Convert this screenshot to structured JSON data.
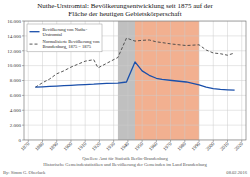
{
  "chart_data": {
    "type": "line",
    "title": "Nuthe-Urstromtal: Bevölkerungsentwicklung seit 1875 auf der\nFläche der heutigen Gebietskörperschaft",
    "x": [
      1875,
      1880,
      1885,
      1890,
      1895,
      1900,
      1905,
      1910,
      1916,
      1919,
      1925,
      1933,
      1939,
      1945,
      1950,
      1955,
      1960,
      1964,
      1971,
      1981,
      1990,
      1995,
      2000,
      2005,
      2010,
      2015
    ],
    "series": [
      {
        "name": "Bevölkerung von Nuthe-\nUrstromtal",
        "color": "#1a4faa",
        "line_style": "solid",
        "values": [
          7100,
          7150,
          7200,
          7250,
          7300,
          7350,
          7400,
          7450,
          7500,
          7550,
          7600,
          7650,
          7800,
          10500,
          9300,
          8700,
          8300,
          8150,
          8000,
          7800,
          7400,
          7100,
          6900,
          6800,
          6750,
          6700
        ]
      },
      {
        "name": "Normalisierte Bevölkerung von\nBrandenburg, 1875 = 1875",
        "color": "#444444",
        "line_style": "dashed",
        "values": [
          7100,
          7700,
          8200,
          8900,
          9300,
          9800,
          10200,
          10600,
          10800,
          9700,
          10300,
          11100,
          13700,
          13300,
          13400,
          13450,
          13200,
          13100,
          12900,
          12700,
          12800,
          12100,
          11700,
          11600,
          11400,
          11700
        ]
      }
    ],
    "spans": [
      {
        "start": 1933,
        "end": 1945,
        "color": "#c0c0c0"
      },
      {
        "start": 1945,
        "end": 1990,
        "color": "#f2b090"
      }
    ],
    "xlim": [
      1867,
      2023
    ],
    "xticks": [
      1870,
      1880,
      1890,
      1900,
      1910,
      1920,
      1930,
      1940,
      1950,
      1960,
      1970,
      1980,
      1990,
      2000,
      2010,
      2020
    ],
    "ylim": [
      0,
      16000
    ],
    "yticks": [
      0,
      {
        "value": 2000,
        "label": "2.000"
      },
      {
        "value": 4000,
        "label": "4.000"
      },
      {
        "value": 6000,
        "label": "6.000"
      },
      {
        "value": 8000,
        "label": "8.000"
      },
      {
        "value": 10000,
        "label": "10.000"
      },
      {
        "value": 12000,
        "label": "12.000"
      },
      {
        "value": 14000,
        "label": "14.000"
      },
      {
        "value": 16000,
        "label": "16.000"
      }
    ],
    "grid": true,
    "legend": "upper left",
    "annotations": [
      "Quellen: Amt für Statistik Berlin-Brandenburg\nHistorische Gemeindestatistiken und Bevölkerung der Gemeinden im Land Brandenburg",
      "By: Simm G. Oberlack",
      "08.02.2016"
    ]
  }
}
